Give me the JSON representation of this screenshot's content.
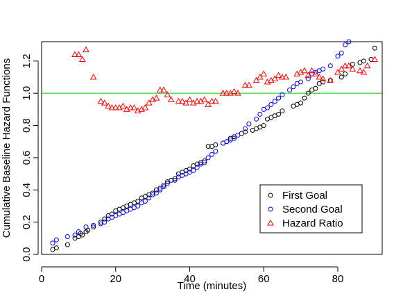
{
  "chart_data": {
    "type": "scatter",
    "title": "",
    "xlabel": "Time (minutes)",
    "ylabel": "Cumulative Baseline Hazard Functions",
    "xlim": [
      0,
      92
    ],
    "ylim": [
      0,
      1.32
    ],
    "x_ticks": [
      0,
      20,
      40,
      60,
      80
    ],
    "y_ticks": [
      0.0,
      0.2,
      0.4,
      0.6,
      0.8,
      1.0,
      1.2
    ],
    "x_tick_labels": [
      "0",
      "20",
      "40",
      "60",
      "80"
    ],
    "y_tick_labels": [
      "0.0",
      "0.2",
      "0.4",
      "0.6",
      "0.8",
      "1.0",
      "1.2"
    ],
    "reference_line": {
      "y": 1.0,
      "color": "#00cc00"
    },
    "legend_position": "bottom-right",
    "series": [
      {
        "name": "First Goal",
        "marker": "circle",
        "color": "#000000",
        "points": [
          [
            3,
            0.03
          ],
          [
            4,
            0.04
          ],
          [
            7,
            0.06
          ],
          [
            9,
            0.1
          ],
          [
            10,
            0.11
          ],
          [
            10.5,
            0.13
          ],
          [
            11,
            0.12
          ],
          [
            12,
            0.14
          ],
          [
            12.5,
            0.15
          ],
          [
            14,
            0.17
          ],
          [
            16,
            0.2
          ],
          [
            17,
            0.22
          ],
          [
            18,
            0.24
          ],
          [
            19,
            0.25
          ],
          [
            20,
            0.27
          ],
          [
            21,
            0.28
          ],
          [
            22,
            0.29
          ],
          [
            23,
            0.3
          ],
          [
            24,
            0.31
          ],
          [
            25,
            0.32
          ],
          [
            26,
            0.33
          ],
          [
            27,
            0.35
          ],
          [
            28,
            0.36
          ],
          [
            29,
            0.37
          ],
          [
            30,
            0.38
          ],
          [
            31,
            0.4
          ],
          [
            32,
            0.41
          ],
          [
            33,
            0.43
          ],
          [
            34,
            0.45
          ],
          [
            35,
            0.46
          ],
          [
            36,
            0.47
          ],
          [
            37,
            0.5
          ],
          [
            38,
            0.51
          ],
          [
            39,
            0.52
          ],
          [
            40,
            0.53
          ],
          [
            41,
            0.55
          ],
          [
            42,
            0.56
          ],
          [
            43,
            0.57
          ],
          [
            44,
            0.58
          ],
          [
            45,
            0.67
          ],
          [
            46,
            0.67
          ],
          [
            47,
            0.68
          ],
          [
            49,
            0.69
          ],
          [
            50,
            0.7
          ],
          [
            51,
            0.72
          ],
          [
            52,
            0.73
          ],
          [
            54,
            0.75
          ],
          [
            55,
            0.76
          ],
          [
            57,
            0.77
          ],
          [
            58,
            0.78
          ],
          [
            59,
            0.79
          ],
          [
            60,
            0.8
          ],
          [
            61,
            0.84
          ],
          [
            62,
            0.85
          ],
          [
            63,
            0.86
          ],
          [
            64,
            0.87
          ],
          [
            65,
            0.89
          ],
          [
            68,
            0.92
          ],
          [
            69,
            0.93
          ],
          [
            70,
            0.94
          ],
          [
            71,
            0.97
          ],
          [
            72,
            1.0
          ],
          [
            73,
            1.02
          ],
          [
            74,
            1.03
          ],
          [
            75,
            1.06
          ],
          [
            76,
            1.07
          ],
          [
            78,
            1.08
          ],
          [
            81,
            1.1
          ],
          [
            82,
            1.12
          ],
          [
            84,
            1.18
          ],
          [
            86,
            1.19
          ],
          [
            87,
            1.2
          ],
          [
            89,
            1.21
          ],
          [
            90,
            1.28
          ]
        ]
      },
      {
        "name": "Second Goal",
        "marker": "circle",
        "color": "#0000ff",
        "points": [
          [
            3,
            0.07
          ],
          [
            4,
            0.09
          ],
          [
            7,
            0.11
          ],
          [
            9,
            0.12
          ],
          [
            10,
            0.14
          ],
          [
            12,
            0.17
          ],
          [
            14,
            0.18
          ],
          [
            16,
            0.19
          ],
          [
            17,
            0.2
          ],
          [
            18,
            0.22
          ],
          [
            19,
            0.23
          ],
          [
            20,
            0.24
          ],
          [
            21,
            0.25
          ],
          [
            22,
            0.26
          ],
          [
            23,
            0.27
          ],
          [
            24,
            0.28
          ],
          [
            25,
            0.29
          ],
          [
            26,
            0.3
          ],
          [
            27,
            0.32
          ],
          [
            28,
            0.33
          ],
          [
            29,
            0.35
          ],
          [
            30,
            0.37
          ],
          [
            31,
            0.38
          ],
          [
            32,
            0.4
          ],
          [
            33,
            0.42
          ],
          [
            34,
            0.44
          ],
          [
            36,
            0.46
          ],
          [
            37,
            0.48
          ],
          [
            38,
            0.49
          ],
          [
            39,
            0.5
          ],
          [
            40,
            0.51
          ],
          [
            41,
            0.52
          ],
          [
            42,
            0.54
          ],
          [
            43,
            0.56
          ],
          [
            44,
            0.57
          ],
          [
            45,
            0.6
          ],
          [
            46,
            0.62
          ],
          [
            47,
            0.64
          ],
          [
            49,
            0.69
          ],
          [
            50,
            0.7
          ],
          [
            51,
            0.71
          ],
          [
            52,
            0.72
          ],
          [
            53,
            0.74
          ],
          [
            55,
            0.78
          ],
          [
            56,
            0.81
          ],
          [
            58,
            0.84
          ],
          [
            59,
            0.87
          ],
          [
            60,
            0.9
          ],
          [
            61,
            0.91
          ],
          [
            62,
            0.93
          ],
          [
            63,
            0.95
          ],
          [
            64,
            0.97
          ],
          [
            65,
            0.99
          ],
          [
            67,
            1.02
          ],
          [
            68,
            1.04
          ],
          [
            69,
            1.06
          ],
          [
            70,
            1.07
          ],
          [
            72,
            1.09
          ],
          [
            73,
            1.12
          ],
          [
            74,
            1.13
          ],
          [
            75,
            1.14
          ],
          [
            76,
            1.15
          ],
          [
            78,
            1.17
          ],
          [
            80,
            1.23
          ],
          [
            81,
            1.25
          ],
          [
            82,
            1.3
          ],
          [
            83,
            1.32
          ]
        ]
      },
      {
        "name": "Hazard Ratio",
        "marker": "triangle",
        "color": "#ff0000",
        "points": [
          [
            9,
            1.24
          ],
          [
            10,
            1.24
          ],
          [
            11,
            1.21
          ],
          [
            12,
            1.27
          ],
          [
            14,
            1.1
          ],
          [
            16,
            0.95
          ],
          [
            17,
            0.94
          ],
          [
            18,
            0.92
          ],
          [
            19,
            0.91
          ],
          [
            20,
            0.91
          ],
          [
            21,
            0.91
          ],
          [
            22,
            0.92
          ],
          [
            23,
            0.9
          ],
          [
            24,
            0.91
          ],
          [
            25,
            0.91
          ],
          [
            26,
            0.89
          ],
          [
            27,
            0.9
          ],
          [
            28,
            0.91
          ],
          [
            29,
            0.94
          ],
          [
            30,
            0.96
          ],
          [
            31,
            0.97
          ],
          [
            32,
            1.02
          ],
          [
            33,
            1.02
          ],
          [
            34,
            0.99
          ],
          [
            35,
            0.96
          ],
          [
            37,
            0.95
          ],
          [
            38,
            0.95
          ],
          [
            39,
            0.94
          ],
          [
            40,
            0.96
          ],
          [
            41,
            0.94
          ],
          [
            42,
            0.95
          ],
          [
            43,
            0.95
          ],
          [
            44,
            0.96
          ],
          [
            45,
            0.93
          ],
          [
            46,
            0.95
          ],
          [
            47,
            0.95
          ],
          [
            49,
            1.0
          ],
          [
            50,
            1.0
          ],
          [
            51,
            1.0
          ],
          [
            52,
            1.01
          ],
          [
            53,
            1.0
          ],
          [
            55,
            1.05
          ],
          [
            56,
            1.05
          ],
          [
            58,
            1.08
          ],
          [
            59,
            1.1
          ],
          [
            60,
            1.12
          ],
          [
            61,
            1.07
          ],
          [
            62,
            1.08
          ],
          [
            63,
            1.09
          ],
          [
            64,
            1.11
          ],
          [
            65,
            1.1
          ],
          [
            66,
            1.1
          ],
          [
            69,
            1.12
          ],
          [
            70,
            1.13
          ],
          [
            71,
            1.14
          ],
          [
            72,
            1.11
          ],
          [
            73,
            1.14
          ],
          [
            74,
            1.12
          ],
          [
            75,
            1.1
          ],
          [
            76,
            1.09
          ],
          [
            78,
            1.08
          ],
          [
            80,
            1.13
          ],
          [
            81,
            1.15
          ],
          [
            82,
            1.17
          ],
          [
            83,
            1.17
          ],
          [
            84,
            1.15
          ],
          [
            86,
            1.14
          ],
          [
            87,
            1.13
          ],
          [
            88,
            1.17
          ],
          [
            90,
            1.21
          ]
        ]
      }
    ]
  }
}
